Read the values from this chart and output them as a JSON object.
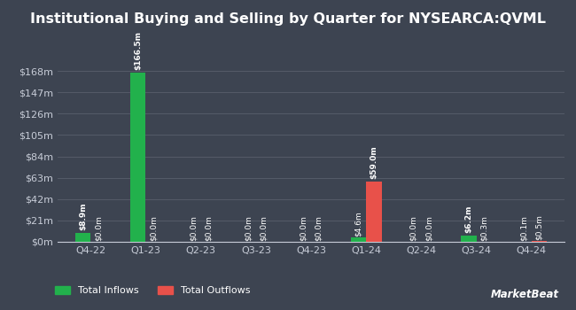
{
  "title": "Institutional Buying and Selling by Quarter for NYSEARCA:QVML",
  "quarters": [
    "Q4-22",
    "Q1-23",
    "Q2-23",
    "Q3-23",
    "Q4-23",
    "Q1-24",
    "Q2-24",
    "Q3-24",
    "Q4-24"
  ],
  "inflows": [
    8.9,
    166.5,
    0.0,
    0.0,
    0.0,
    4.6,
    0.0,
    6.2,
    0.1
  ],
  "outflows": [
    0.0,
    0.0,
    0.0,
    0.0,
    0.0,
    59.0,
    0.0,
    0.3,
    0.5
  ],
  "inflow_labels": [
    "$8.9m",
    "$166.5m",
    "$0.0m",
    "$0.0m",
    "$0.0m",
    "$4.6m",
    "$0.0m",
    "$6.2m",
    "$0.1m"
  ],
  "outflow_labels": [
    "$0.0m",
    "$0.0m",
    "$0.0m",
    "$0.0m",
    "$0.0m",
    "$59.0m",
    "$0.0m",
    "$0.3m",
    "$0.5m"
  ],
  "inflow_color": "#22b14c",
  "outflow_color": "#e8514a",
  "bg_color": "#3d4451",
  "grid_color": "#555b68",
  "text_color": "#ffffff",
  "label_color": "#c8cdd8",
  "bar_width": 0.28,
  "ylim": [
    0,
    189
  ],
  "yticks": [
    0,
    21,
    42,
    63,
    84,
    105,
    126,
    147,
    168
  ],
  "ytick_labels": [
    "$0m",
    "$21m",
    "$42m",
    "$63m",
    "$84m",
    "$105m",
    "$126m",
    "$147m",
    "$168m"
  ],
  "legend_inflow": "Total Inflows",
  "legend_outflow": "Total Outflows",
  "title_fontsize": 11.5,
  "tick_fontsize": 8,
  "label_fontsize": 6.5,
  "markerbeat_text": "MarketBeat"
}
